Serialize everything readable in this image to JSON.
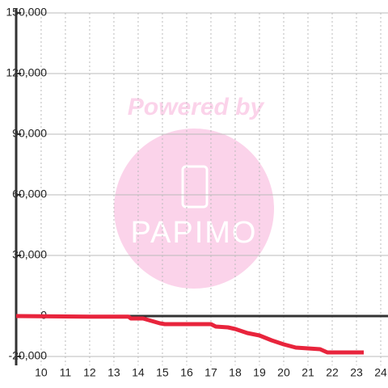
{
  "chart_data": {
    "type": "line",
    "watermark": {
      "text": "Powered by",
      "logo": "PAPIMO"
    },
    "x": [
      8.97,
      12,
      13.6,
      13.7,
      14.2,
      14.9,
      15.1,
      17,
      17.2,
      17.7,
      18,
      18.5,
      19,
      19.5,
      20,
      20.5,
      21,
      21.5,
      21.8,
      23.3
    ],
    "series": [
      {
        "color": "#e8243c",
        "values": [
          0,
          -300,
          -300,
          -1200,
          -1200,
          -3600,
          -4000,
          -4000,
          -5200,
          -5600,
          -6400,
          -8400,
          -9600,
          -12000,
          -14000,
          -15600,
          -16000,
          -16400,
          -18000,
          -18000
        ]
      }
    ],
    "xlim": [
      8.97,
      24.3
    ],
    "xticks": [
      10,
      11,
      12,
      13,
      14,
      15,
      16,
      17,
      18,
      19,
      20,
      21,
      22,
      23,
      24
    ],
    "ylim": [
      -20000,
      150000
    ],
    "yticks": [
      {
        "value": -20000,
        "label": "-20,000"
      },
      0,
      {
        "value": 30000,
        "label": "30,000"
      },
      {
        "value": 60000,
        "label": "60,000"
      },
      {
        "value": 90000,
        "label": "90,000"
      },
      {
        "value": 120000,
        "label": "120,000"
      },
      {
        "value": 150000,
        "label": "150,000"
      }
    ],
    "grid": true
  }
}
